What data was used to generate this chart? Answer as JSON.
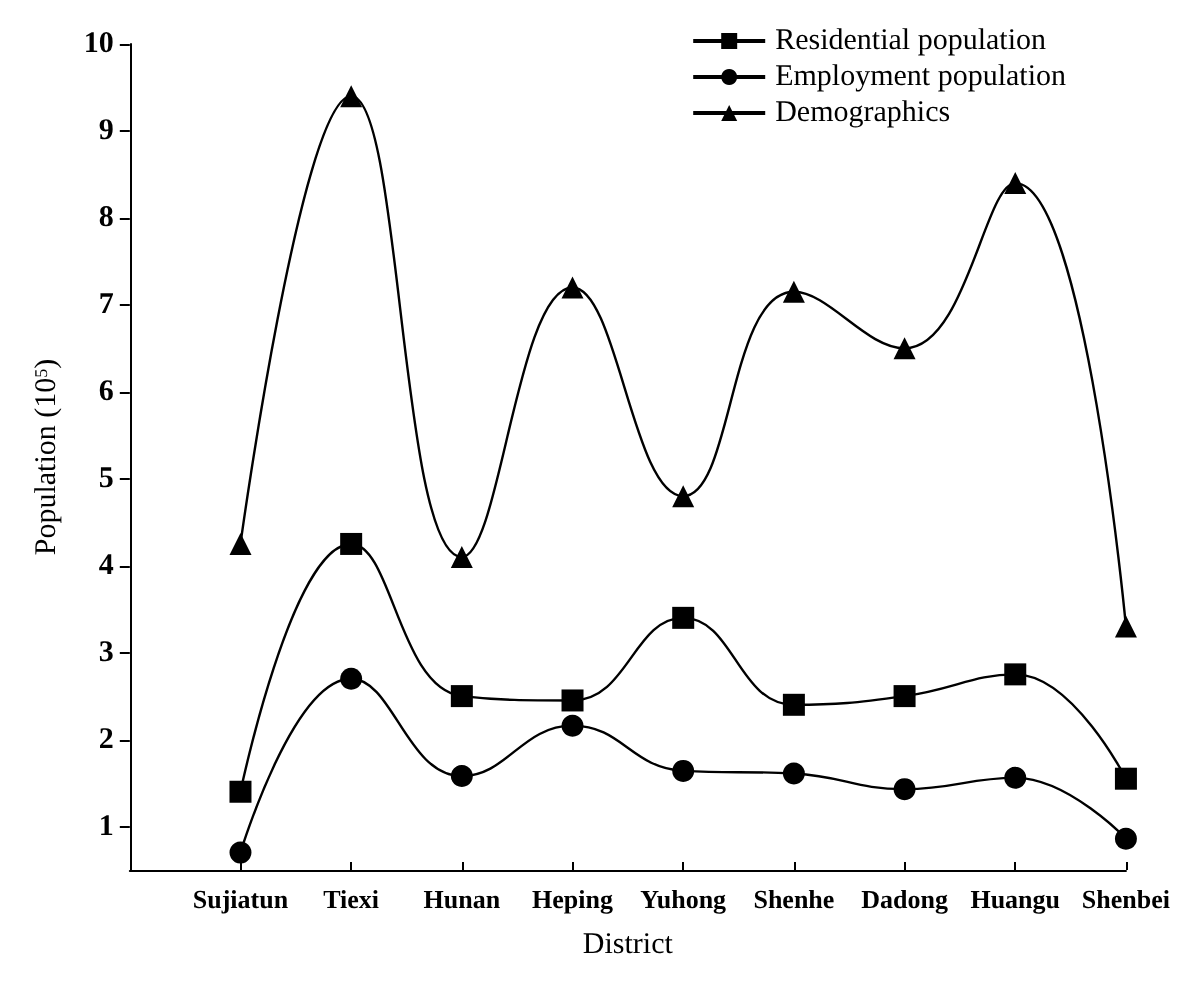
{
  "chart_data": {
    "type": "line",
    "xlabel": "District",
    "ylabel": "Population (10$^{5}$)",
    "categories": [
      "Sujiatun",
      "Tiexi",
      "Hunan",
      "Heping",
      "Yuhong",
      "Shenhe",
      "Dadong",
      "Huangu",
      "Shenbei"
    ],
    "series": [
      {
        "name": "Residential population",
        "color": "#000000",
        "marker": "square",
        "values": [
          1.4,
          4.25,
          2.5,
          2.45,
          3.4,
          2.4,
          2.5,
          2.75,
          1.55
        ]
      },
      {
        "name": "Employment population",
        "color": "#000000",
        "marker": "circle",
        "values": [
          0.7,
          2.7,
          1.58,
          2.16,
          1.64,
          1.61,
          1.43,
          1.56,
          0.86
        ]
      },
      {
        "name": "Demographics",
        "color": "#000000",
        "marker": "triangle",
        "values": [
          4.25,
          9.4,
          4.1,
          7.2,
          4.8,
          7.15,
          6.5,
          8.4,
          3.3
        ]
      }
    ],
    "ylim": [
      0.5,
      10
    ],
    "yticks": [
      1,
      2,
      3,
      4,
      5,
      6,
      7,
      8,
      9,
      10
    ],
    "grid": false,
    "legend": "top right",
    "line_style": "solid"
  }
}
